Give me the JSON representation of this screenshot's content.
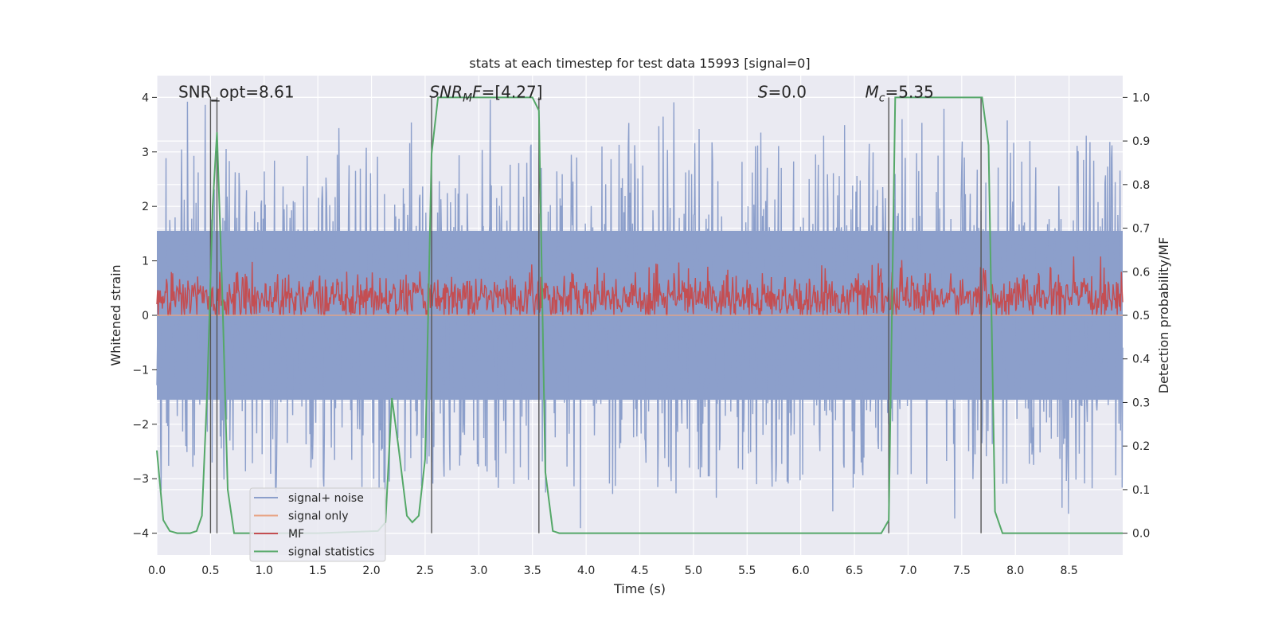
{
  "chart_data": {
    "type": "line",
    "title": "stats at each timestep for test data 15993 [signal=0]",
    "xlabel": "Time (s)",
    "ylabel": "Whitened strain",
    "ylabel_right": "Detection probability/MF",
    "xlim": [
      0.0,
      9.0
    ],
    "ylim": [
      -4.4,
      4.4
    ],
    "ylim_right": [
      -0.05,
      1.05
    ],
    "grid": true,
    "legend_position": "lower-left",
    "x_ticks": [
      0.0,
      0.5,
      1.0,
      1.5,
      2.0,
      2.5,
      3.0,
      3.5,
      4.0,
      4.5,
      5.0,
      5.5,
      6.0,
      6.5,
      7.0,
      7.5,
      8.0,
      8.5
    ],
    "x_tick_labels": [
      "0.0",
      "0.5",
      "1.0",
      "1.5",
      "2.0",
      "2.5",
      "3.0",
      "3.5",
      "4.0",
      "4.5",
      "5.0",
      "5.5",
      "6.0",
      "6.5",
      "7.0",
      "7.5",
      "8.0",
      "8.5"
    ],
    "y_ticks": [
      -4,
      -3,
      -2,
      -1,
      0,
      1,
      2,
      3,
      4
    ],
    "y_tick_labels": [
      "−4",
      "−3",
      "−2",
      "−1",
      "0",
      "1",
      "2",
      "3",
      "4"
    ],
    "y_ticks_right": [
      0.0,
      0.1,
      0.2,
      0.3,
      0.4,
      0.5,
      0.6,
      0.7,
      0.8,
      0.9,
      1.0
    ],
    "y_tick_labels_right": [
      "0.0",
      "0.1",
      "0.2",
      "0.3",
      "0.4",
      "0.5",
      "0.6",
      "0.7",
      "0.8",
      "0.9",
      "1.0"
    ],
    "annotations": [
      {
        "text": "SNR_opt=8.61",
        "x": 0.2,
        "y": 4.0
      },
      {
        "text": "SNR_MF=[4.27]",
        "x": 2.6,
        "y": 4.0
      },
      {
        "text": "S=0.0",
        "x": 5.6,
        "y": 4.0
      },
      {
        "text": "M_c=5.35",
        "x": 6.6,
        "y": 4.0
      }
    ],
    "vertical_markers": [
      0.5,
      0.56,
      2.56,
      3.56,
      6.82,
      7.68
    ],
    "series": [
      {
        "name": "signal+ noise",
        "axis": "left",
        "color": "#8c9fcb",
        "description_band": {
          "x_range": [
            0.0,
            9.0
          ],
          "typical_range": [
            -1.6,
            1.6
          ],
          "peak_range": [
            -4.0,
            4.0
          ]
        }
      },
      {
        "name": "signal only",
        "axis": "left",
        "color": "#e8a383",
        "x": [
          0.0,
          9.0
        ],
        "y": [
          0.0,
          0.0
        ]
      },
      {
        "name": "MF",
        "axis": "right",
        "color": "#c44e52",
        "description_band": {
          "x_range": [
            0.0,
            9.0
          ],
          "typical_range": [
            0.5,
            0.58
          ],
          "peak_range": [
            0.5,
            0.63
          ]
        }
      },
      {
        "name": "signal statistics",
        "axis": "right",
        "color": "#55a868",
        "x": [
          0.0,
          0.06,
          0.12,
          0.19,
          0.25,
          0.31,
          0.37,
          0.42,
          0.47,
          0.52,
          0.56,
          0.61,
          0.66,
          0.72,
          1.5,
          2.06,
          2.13,
          2.19,
          2.25,
          2.33,
          2.38,
          2.44,
          2.5,
          2.56,
          2.62,
          3.44,
          3.5,
          3.56,
          3.62,
          3.69,
          3.75,
          6.75,
          6.82,
          6.88,
          7.5,
          7.69,
          7.75,
          7.81,
          7.88,
          8.0,
          9.0
        ],
        "y": [
          0.19,
          0.03,
          0.005,
          0.0,
          0.0,
          0.0,
          0.005,
          0.04,
          0.33,
          0.75,
          0.92,
          0.55,
          0.1,
          0.0,
          0.0,
          0.005,
          0.025,
          0.31,
          0.2,
          0.04,
          0.025,
          0.04,
          0.17,
          0.87,
          1.0,
          1.0,
          1.0,
          0.97,
          0.14,
          0.005,
          0.0,
          0.0,
          0.03,
          1.0,
          1.0,
          1.0,
          0.89,
          0.05,
          0.0,
          0.0,
          0.0
        ]
      }
    ]
  }
}
